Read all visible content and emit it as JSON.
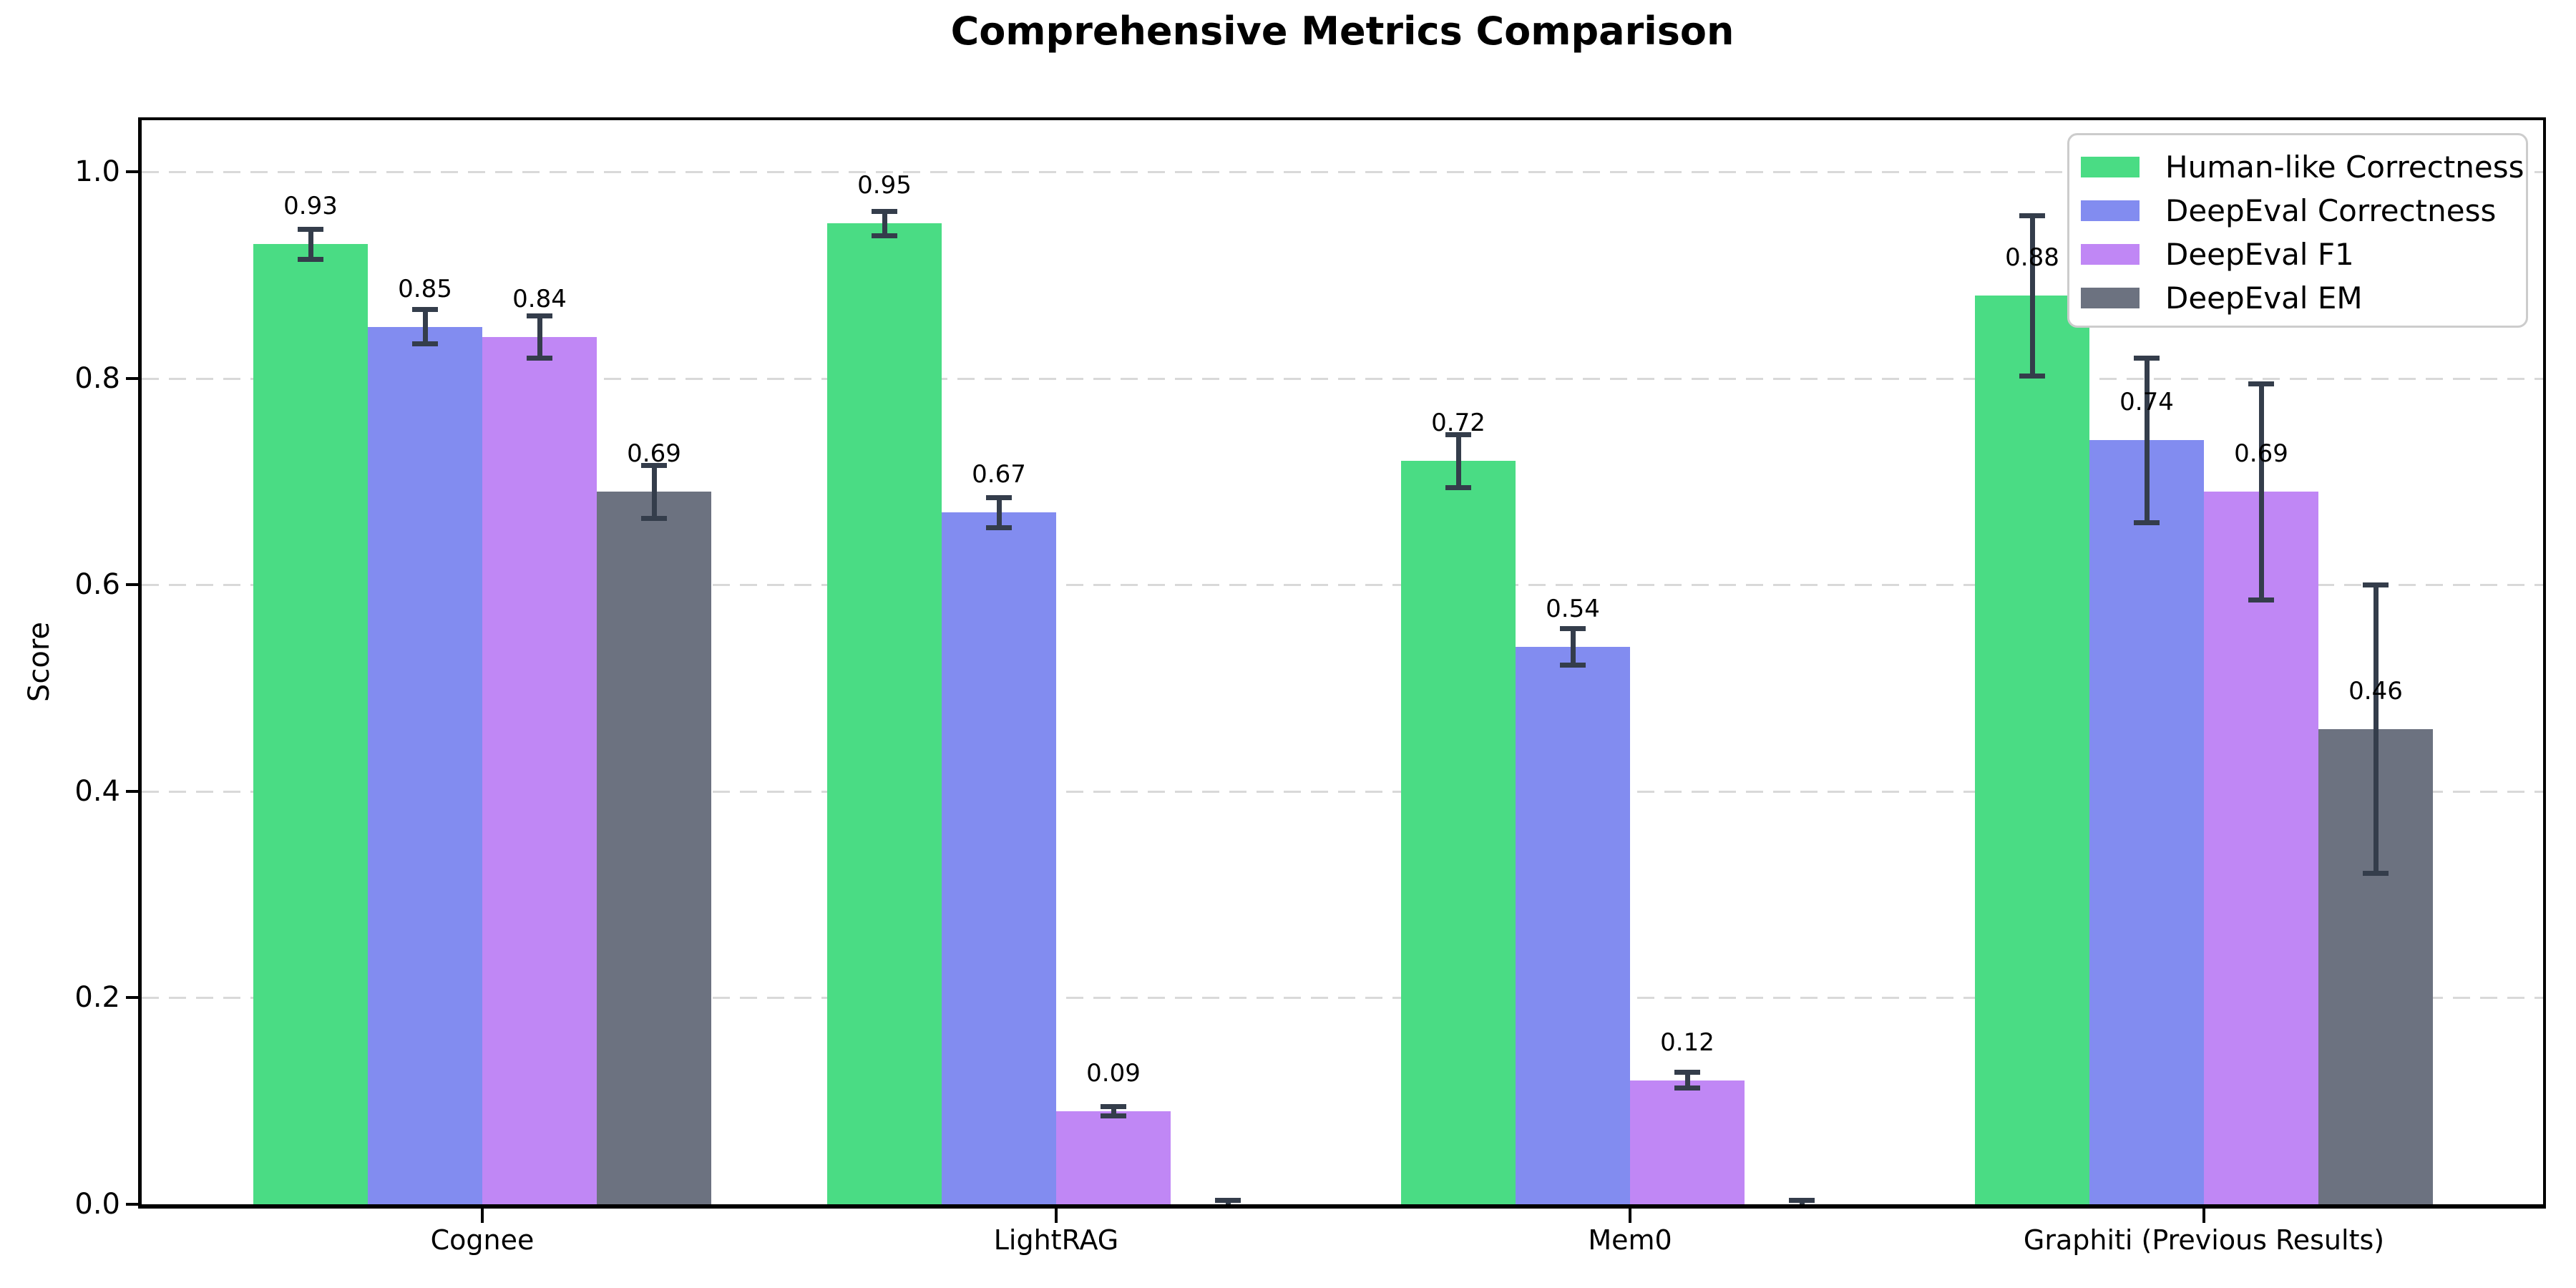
{
  "chart_data": {
    "type": "bar",
    "title": "Comprehensive Metrics Comparison",
    "ylabel": "Score",
    "categories": [
      "Cognee",
      "LightRAG",
      "Mem0",
      "Graphiti (Previous Results)"
    ],
    "series": [
      {
        "name": "Human-like Correctness",
        "color": "#4adc84",
        "values": [
          0.93,
          0.95,
          0.72,
          0.88
        ],
        "errors": [
          0.015,
          0.012,
          0.026,
          0.078
        ],
        "labels": [
          "0.93",
          "0.95",
          "0.72",
          "0.88"
        ]
      },
      {
        "name": "DeepEval Correctness",
        "color": "#828cf0",
        "values": [
          0.85,
          0.67,
          0.54,
          0.74
        ],
        "errors": [
          0.017,
          0.015,
          0.018,
          0.08
        ],
        "labels": [
          "0.85",
          "0.67",
          "0.54",
          "0.74"
        ]
      },
      {
        "name": "DeepEval F1",
        "color": "#c087f5",
        "values": [
          0.84,
          0.09,
          0.12,
          0.69
        ],
        "errors": [
          0.021,
          0.005,
          0.008,
          0.105
        ],
        "labels": [
          "0.84",
          "0.09",
          "0.12",
          "0.69"
        ]
      },
      {
        "name": "DeepEval EM",
        "color": "#6c7280",
        "values": [
          0.69,
          0.0,
          0.0,
          0.46
        ],
        "errors": [
          0.026,
          0.004,
          0.004,
          0.14
        ],
        "labels": [
          "0.69",
          "",
          "",
          "0.46"
        ]
      }
    ],
    "yticks": [
      0.0,
      0.2,
      0.4,
      0.6,
      0.8,
      1.0
    ],
    "ytick_labels": [
      "0.0",
      "0.2",
      "0.4",
      "0.6",
      "0.8",
      "1.0"
    ],
    "ylim": [
      0,
      1.05
    ],
    "grid": "dashed-horizontal",
    "legend_position": "upper-right",
    "colors": {
      "errorbar": "#343d4b",
      "grid": "#d9d9d9",
      "axis": "#000000",
      "background": "#ffffff"
    }
  }
}
